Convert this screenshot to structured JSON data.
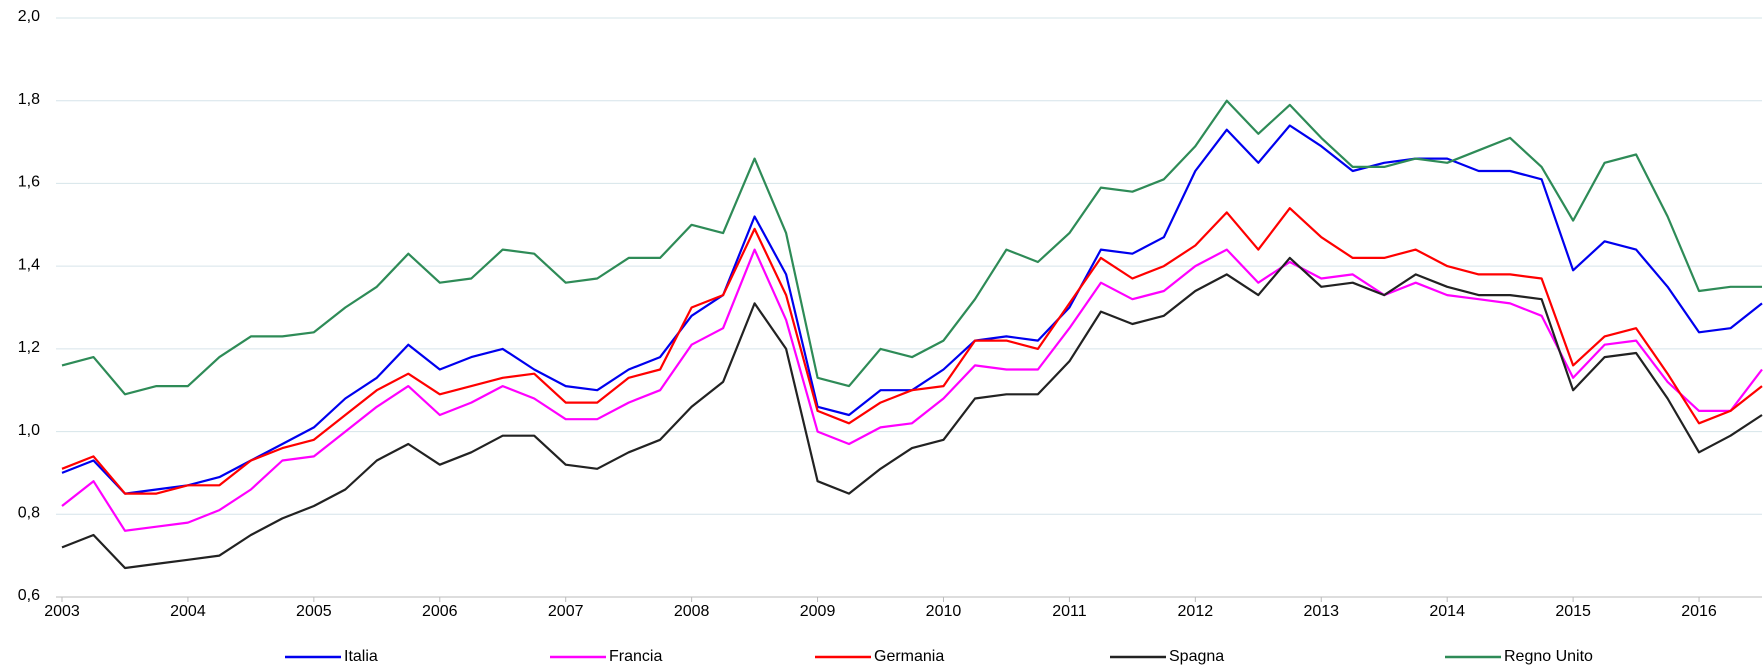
{
  "chart_data": {
    "type": "line",
    "x": [
      2003,
      2003.25,
      2003.5,
      2003.75,
      2004,
      2004.25,
      2004.5,
      2004.75,
      2005,
      2005.25,
      2005.5,
      2005.75,
      2006,
      2006.25,
      2006.5,
      2006.75,
      2007,
      2007.25,
      2007.5,
      2007.75,
      2008,
      2008.25,
      2008.5,
      2008.75,
      2009,
      2009.25,
      2009.5,
      2009.75,
      2010,
      2010.25,
      2010.5,
      2010.75,
      2011,
      2011.25,
      2011.5,
      2011.75,
      2012,
      2012.25,
      2012.5,
      2012.75,
      2013,
      2013.25,
      2013.5,
      2013.75,
      2014,
      2014.25,
      2014.5,
      2014.75,
      2015,
      2015.25,
      2015.5,
      2015.75,
      2016,
      2016.25,
      2016.5
    ],
    "series": [
      {
        "name": "Italia",
        "color": "#0000ee",
        "values": [
          0.9,
          0.93,
          0.85,
          0.86,
          0.87,
          0.89,
          0.93,
          0.97,
          1.01,
          1.08,
          1.13,
          1.21,
          1.15,
          1.18,
          1.2,
          1.15,
          1.11,
          1.1,
          1.15,
          1.18,
          1.28,
          1.33,
          1.52,
          1.38,
          1.06,
          1.04,
          1.1,
          1.1,
          1.15,
          1.22,
          1.23,
          1.22,
          1.3,
          1.44,
          1.43,
          1.47,
          1.63,
          1.73,
          1.65,
          1.74,
          1.69,
          1.63,
          1.65,
          1.66,
          1.66,
          1.63,
          1.63,
          1.61,
          1.39,
          1.46,
          1.44,
          1.35,
          1.24,
          1.25,
          1.31
        ]
      },
      {
        "name": "Francia",
        "color": "#ff00ff",
        "values": [
          0.82,
          0.88,
          0.76,
          0.77,
          0.78,
          0.81,
          0.86,
          0.93,
          0.94,
          1.0,
          1.06,
          1.11,
          1.04,
          1.07,
          1.11,
          1.08,
          1.03,
          1.03,
          1.07,
          1.1,
          1.21,
          1.25,
          1.44,
          1.27,
          1.0,
          0.97,
          1.01,
          1.02,
          1.08,
          1.16,
          1.15,
          1.15,
          1.25,
          1.36,
          1.32,
          1.34,
          1.4,
          1.44,
          1.36,
          1.41,
          1.37,
          1.38,
          1.33,
          1.36,
          1.33,
          1.32,
          1.31,
          1.28,
          1.13,
          1.21,
          1.22,
          1.12,
          1.05,
          1.05,
          1.15
        ]
      },
      {
        "name": "Germania",
        "color": "#ff0000",
        "values": [
          0.91,
          0.94,
          0.85,
          0.85,
          0.87,
          0.87,
          0.93,
          0.96,
          0.98,
          1.04,
          1.1,
          1.14,
          1.09,
          1.11,
          1.13,
          1.14,
          1.07,
          1.07,
          1.13,
          1.15,
          1.3,
          1.33,
          1.49,
          1.33,
          1.05,
          1.02,
          1.07,
          1.1,
          1.11,
          1.22,
          1.22,
          1.2,
          1.31,
          1.42,
          1.37,
          1.4,
          1.45,
          1.53,
          1.44,
          1.54,
          1.47,
          1.42,
          1.42,
          1.44,
          1.4,
          1.38,
          1.38,
          1.37,
          1.16,
          1.23,
          1.25,
          1.14,
          1.02,
          1.05,
          1.11
        ]
      },
      {
        "name": "Spagna",
        "color": "#222222",
        "values": [
          0.72,
          0.75,
          0.67,
          0.68,
          0.69,
          0.7,
          0.75,
          0.79,
          0.82,
          0.86,
          0.93,
          0.97,
          0.92,
          0.95,
          0.99,
          0.99,
          0.92,
          0.91,
          0.95,
          0.98,
          1.06,
          1.12,
          1.31,
          1.2,
          0.88,
          0.85,
          0.91,
          0.96,
          0.98,
          1.08,
          1.09,
          1.09,
          1.17,
          1.29,
          1.26,
          1.28,
          1.34,
          1.38,
          1.33,
          1.42,
          1.35,
          1.36,
          1.33,
          1.38,
          1.35,
          1.33,
          1.33,
          1.32,
          1.1,
          1.18,
          1.19,
          1.08,
          0.95,
          0.99,
          1.04
        ]
      },
      {
        "name": "Regno Unito",
        "color": "#2e8b57",
        "values": [
          1.16,
          1.18,
          1.09,
          1.11,
          1.11,
          1.18,
          1.23,
          1.23,
          1.24,
          1.3,
          1.35,
          1.43,
          1.36,
          1.37,
          1.44,
          1.43,
          1.36,
          1.37,
          1.42,
          1.42,
          1.5,
          1.48,
          1.66,
          1.48,
          1.13,
          1.11,
          1.2,
          1.18,
          1.22,
          1.32,
          1.44,
          1.41,
          1.48,
          1.59,
          1.58,
          1.61,
          1.69,
          1.8,
          1.72,
          1.79,
          1.71,
          1.64,
          1.64,
          1.66,
          1.65,
          1.68,
          1.71,
          1.64,
          1.51,
          1.65,
          1.67,
          1.52,
          1.34,
          1.35,
          1.35
        ]
      }
    ],
    "xlim": [
      2003,
      2016.5
    ],
    "xticks": [
      2003,
      2004,
      2005,
      2006,
      2007,
      2008,
      2009,
      2010,
      2011,
      2012,
      2013,
      2014,
      2015,
      2016
    ],
    "ylim": [
      0.6,
      2.0
    ],
    "yticks": [
      {
        "value": 0.6,
        "label": "0,6"
      },
      {
        "value": 0.8,
        "label": "0,8"
      },
      {
        "value": 1.0,
        "label": "1,0"
      },
      {
        "value": 1.2,
        "label": "1,2"
      },
      {
        "value": 1.4,
        "label": "1,4"
      },
      {
        "value": 1.6,
        "label": "1,6"
      },
      {
        "value": 1.8,
        "label": "1,8"
      },
      {
        "value": 2.0,
        "label": "2,0"
      }
    ],
    "grid": true,
    "legend": "bottom"
  }
}
